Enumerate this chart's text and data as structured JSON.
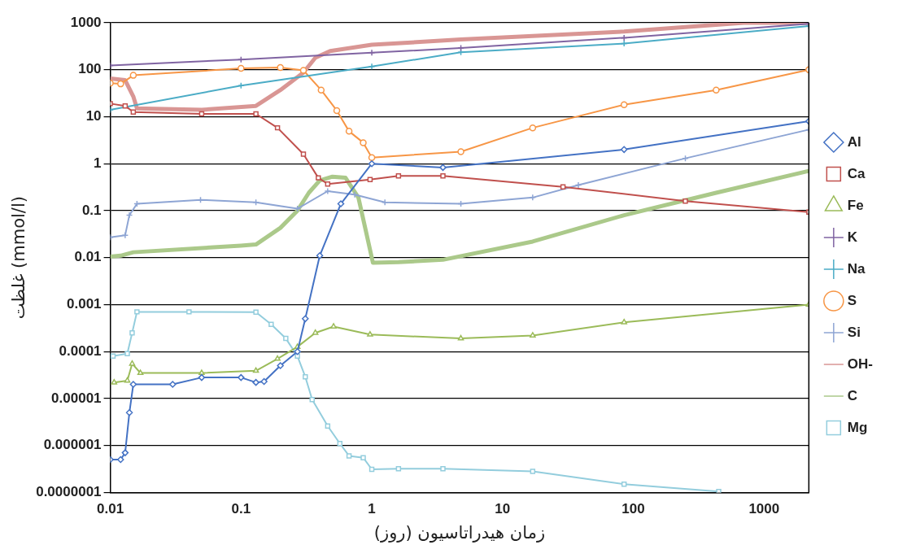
{
  "chart_data": {
    "type": "line",
    "xlabel": "زمان هیدراتاسیون (روز)",
    "ylabel": "غلظت (mmol/l)",
    "log": "xy",
    "grid": "y",
    "legend": "right",
    "xlim": [
      0.01,
      2200
    ],
    "xticks": [
      0.01,
      0.1,
      1,
      10,
      100,
      1000
    ],
    "ylim": [
      1e-07,
      1000
    ],
    "yticks": [
      {
        "value": 1e-07,
        "label": "0.0000001"
      },
      {
        "value": 1e-06,
        "label": "0.000001"
      },
      {
        "value": 1e-05,
        "label": "0.00001"
      },
      0.0001,
      0.001,
      0.01,
      0.1,
      1,
      10,
      100,
      1000
    ],
    "series": [
      {
        "name": "Al",
        "color": "#4472c4",
        "marker": "diamond",
        "x": [
          0.01,
          0.012,
          0.013,
          0.014,
          0.015,
          0.03,
          0.05,
          0.1,
          0.13,
          0.15,
          0.2,
          0.27,
          0.31,
          0.4,
          0.58,
          1,
          3.5,
          85,
          2200
        ],
        "values": [
          5e-07,
          5e-07,
          7e-07,
          5e-06,
          2e-05,
          2e-05,
          2.8e-05,
          2.8e-05,
          2.2e-05,
          2.3e-05,
          5e-05,
          0.0001,
          0.0005,
          0.011,
          0.14,
          1,
          0.83,
          2,
          8
        ]
      },
      {
        "name": "Ca",
        "color": "#c0504d",
        "marker": "square",
        "x": [
          0.01,
          0.013,
          0.015,
          0.05,
          0.13,
          0.19,
          0.3,
          0.39,
          0.46,
          0.97,
          1.6,
          3.5,
          29,
          250,
          2200
        ],
        "values": [
          19,
          17,
          12.6,
          11.5,
          11.5,
          5.8,
          1.6,
          0.5,
          0.37,
          0.46,
          0.55,
          0.55,
          0.32,
          0.16,
          0.093
        ]
      },
      {
        "name": "Fe",
        "color": "#9bbb59",
        "marker": "triangle",
        "x": [
          0.0107,
          0.0135,
          0.0147,
          0.017,
          0.05,
          0.13,
          0.19,
          0.27,
          0.37,
          0.51,
          0.97,
          4.8,
          17,
          85,
          2200
        ],
        "values": [
          2.2e-05,
          2.4e-05,
          5.5e-05,
          3.5e-05,
          3.5e-05,
          3.9e-05,
          7e-05,
          0.000126,
          0.00025,
          0.00034,
          0.00023,
          0.00019,
          0.00022,
          0.00042,
          0.001
        ]
      },
      {
        "name": "K",
        "color": "#8064a2",
        "marker": "cross",
        "x": [
          0.01,
          0.1,
          1,
          4.8,
          85,
          2200
        ],
        "values": [
          123,
          165,
          230,
          290,
          480,
          950
        ]
      },
      {
        "name": "Na",
        "color": "#4bacc6",
        "marker": "cross",
        "x": [
          0.01,
          0.1,
          1,
          4.8,
          85,
          2200
        ],
        "values": [
          14,
          46,
          117,
          235,
          360,
          850
        ]
      },
      {
        "name": "S",
        "color": "#f79646",
        "marker": "circle",
        "x": [
          0.01,
          0.012,
          0.015,
          0.1,
          0.2,
          0.3,
          0.41,
          0.54,
          0.67,
          0.86,
          1,
          4.8,
          17,
          85,
          430,
          2200
        ],
        "values": [
          52,
          50,
          76,
          107,
          112,
          97,
          37,
          13.5,
          4.9,
          2.8,
          1.35,
          1.8,
          5.8,
          18,
          37,
          100
        ]
      },
      {
        "name": "Si",
        "color": "#8ea5d4",
        "marker": "cross",
        "x": [
          0.01,
          0.013,
          0.014,
          0.016,
          0.049,
          0.13,
          0.27,
          0.46,
          0.74,
          1.26,
          4.8,
          17,
          38,
          250,
          2200
        ],
        "values": [
          0.027,
          0.03,
          0.08,
          0.14,
          0.17,
          0.15,
          0.11,
          0.26,
          0.22,
          0.15,
          0.14,
          0.19,
          0.35,
          1.3,
          5.3
        ]
      },
      {
        "name": "OH-",
        "color": "#d99694",
        "marker": "none",
        "x": [
          0.01,
          0.013,
          0.015,
          0.016,
          0.05,
          0.13,
          0.2,
          0.3,
          0.37,
          0.48,
          1,
          4.8,
          85,
          700,
          2200
        ],
        "values": [
          65,
          60,
          27,
          15,
          14,
          17,
          37,
          87,
          180,
          250,
          340,
          440,
          650,
          1000,
          1000
        ]
      },
      {
        "name": "C",
        "color": "#abc98a",
        "marker": "none",
        "x": [
          0.01,
          0.012,
          0.015,
          0.1,
          0.13,
          0.2,
          0.27,
          0.33,
          0.4,
          0.5,
          0.63,
          0.79,
          0.89,
          1.02,
          1.6,
          3.5,
          17,
          85,
          430,
          2200
        ],
        "values": [
          0.0105,
          0.011,
          0.013,
          0.018,
          0.019,
          0.043,
          0.1,
          0.24,
          0.44,
          0.53,
          0.5,
          0.19,
          0.043,
          0.0078,
          0.008,
          0.009,
          0.022,
          0.08,
          0.24,
          0.7
        ]
      },
      {
        "name": "Mg",
        "color": "#93cddd",
        "marker": "square",
        "x": [
          0.0105,
          0.0135,
          0.0147,
          0.016,
          0.04,
          0.13,
          0.17,
          0.22,
          0.27,
          0.31,
          0.35,
          0.46,
          0.57,
          0.67,
          0.86,
          1,
          1.6,
          3.5,
          17,
          85,
          450
        ],
        "values": [
          8e-05,
          9e-05,
          0.00025,
          0.0007,
          0.0007,
          0.00069,
          0.00038,
          0.00019,
          8e-05,
          2.9e-05,
          9.5e-06,
          2.6e-06,
          1.1e-06,
          6e-07,
          5.5e-07,
          3.1e-07,
          3.2e-07,
          3.2e-07,
          2.8e-07,
          1.5e-07,
          1.05e-07
        ]
      }
    ]
  }
}
